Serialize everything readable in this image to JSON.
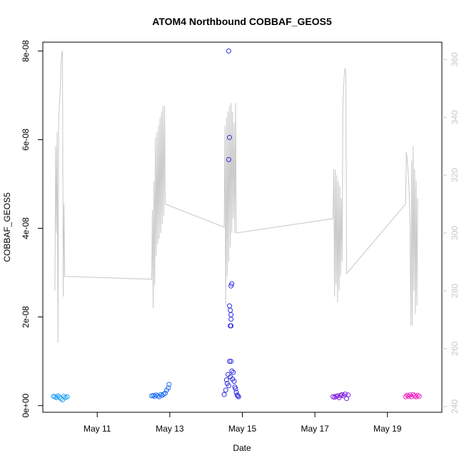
{
  "chart_data": {
    "type": "scatter",
    "title": "ATOM4 Northbound COBBAF_GEOS5",
    "xlabel": "Date",
    "ylabel": "COBBAF_GEOS5",
    "xlim": [
      "2016-05-09T12:00",
      "2016-05-20T12:00"
    ],
    "ylim": [
      -1.5e-09,
      8.2e-08
    ],
    "y2lim": [
      238,
      366
    ],
    "x_ticks": [
      {
        "label": "May 11",
        "value": "2016-05-11"
      },
      {
        "label": "May 13",
        "value": "2016-05-13"
      },
      {
        "label": "May 15",
        "value": "2016-05-15"
      },
      {
        "label": "May 17",
        "value": "2016-05-17"
      },
      {
        "label": "May 19",
        "value": "2016-05-19"
      }
    ],
    "y_ticks": [
      {
        "label": "0e+00",
        "value": 0
      },
      {
        "label": "2e-08",
        "value": 2e-08
      },
      {
        "label": "4e-08",
        "value": 4e-08
      },
      {
        "label": "6e-08",
        "value": 6e-08
      },
      {
        "label": "8e-08",
        "value": 8e-08
      }
    ],
    "y2_ticks": [
      {
        "label": "240",
        "value": 240
      },
      {
        "label": "260",
        "value": 260
      },
      {
        "label": "280",
        "value": 280
      },
      {
        "label": "300",
        "value": 300
      },
      {
        "label": "320",
        "value": 320
      },
      {
        "label": "340",
        "value": 340
      },
      {
        "label": "360",
        "value": 360
      }
    ],
    "series": [
      {
        "type": "line",
        "axis": "right",
        "color": "#c8c8c8",
        "points": [
          [
            "2016-05-09T20:00",
            280
          ],
          [
            "2016-05-09T20:30",
            330
          ],
          [
            "2016-05-09T21:00",
            300
          ],
          [
            "2016-05-09T21:30",
            335
          ],
          [
            "2016-05-09T22:00",
            262
          ],
          [
            "2016-05-09T22:30",
            338
          ],
          [
            "2016-05-09T23:00",
            345
          ],
          [
            "2016-05-09T23:30",
            350
          ],
          [
            "2016-05-10T00:00",
            358
          ],
          [
            "2016-05-10T00:30",
            362
          ],
          [
            "2016-05-10T01:00",
            363
          ],
          [
            "2016-05-10T01:30",
            278
          ],
          [
            "2016-05-10T02:00",
            310
          ],
          [
            "2016-05-10T02:30",
            285
          ],
          [
            "2016-05-12T12:00",
            284
          ],
          [
            "2016-05-12T12:30",
            308
          ],
          [
            "2016-05-12T13:00",
            274
          ],
          [
            "2016-05-12T13:30",
            318
          ],
          [
            "2016-05-12T14:00",
            282
          ],
          [
            "2016-05-12T14:30",
            333
          ],
          [
            "2016-05-12T15:00",
            292
          ],
          [
            "2016-05-12T15:30",
            335
          ],
          [
            "2016-05-12T16:00",
            296
          ],
          [
            "2016-05-12T16:30",
            337
          ],
          [
            "2016-05-12T17:00",
            298
          ],
          [
            "2016-05-12T17:30",
            340
          ],
          [
            "2016-05-12T18:00",
            300
          ],
          [
            "2016-05-12T18:30",
            342
          ],
          [
            "2016-05-12T19:00",
            303
          ],
          [
            "2016-05-12T19:30",
            344
          ],
          [
            "2016-05-12T20:00",
            306
          ],
          [
            "2016-05-12T20:30",
            344
          ],
          [
            "2016-05-12T21:00",
            310
          ],
          [
            "2016-05-14T12:00",
            302
          ],
          [
            "2016-05-14T12:30",
            337
          ],
          [
            "2016-05-14T13:00",
            275
          ],
          [
            "2016-05-14T13:30",
            340
          ],
          [
            "2016-05-14T14:00",
            285
          ],
          [
            "2016-05-14T14:30",
            342
          ],
          [
            "2016-05-14T15:00",
            290
          ],
          [
            "2016-05-14T15:30",
            344
          ],
          [
            "2016-05-14T16:00",
            295
          ],
          [
            "2016-05-14T16:30",
            345
          ],
          [
            "2016-05-14T17:00",
            300
          ],
          [
            "2016-05-14T17:30",
            342
          ],
          [
            "2016-05-14T18:00",
            305
          ],
          [
            "2016-05-14T18:30",
            338
          ],
          [
            "2016-05-14T19:00",
            300
          ],
          [
            "2016-05-14T19:30",
            345
          ],
          [
            "2016-05-14T20:00",
            300
          ],
          [
            "2016-05-17T12:00",
            305
          ],
          [
            "2016-05-17T12:30",
            322
          ],
          [
            "2016-05-17T13:00",
            278
          ],
          [
            "2016-05-17T13:30",
            322
          ],
          [
            "2016-05-17T14:00",
            282
          ],
          [
            "2016-05-17T14:30",
            320
          ],
          [
            "2016-05-17T15:00",
            276
          ],
          [
            "2016-05-17T15:30",
            318
          ],
          [
            "2016-05-17T16:00",
            280
          ],
          [
            "2016-05-17T16:30",
            316
          ],
          [
            "2016-05-17T17:00",
            285
          ],
          [
            "2016-05-17T17:30",
            312
          ],
          [
            "2016-05-17T18:00",
            290
          ],
          [
            "2016-05-17T18:30",
            345
          ],
          [
            "2016-05-17T19:00",
            350
          ],
          [
            "2016-05-17T19:30",
            355
          ],
          [
            "2016-05-17T20:00",
            357
          ],
          [
            "2016-05-17T20:30",
            355
          ],
          [
            "2016-05-17T21:00",
            286
          ],
          [
            "2016-05-19T12:00",
            310
          ],
          [
            "2016-05-19T12:30",
            328
          ],
          [
            "2016-05-19T13:00",
            326
          ],
          [
            "2016-05-19T13:30",
            322
          ],
          [
            "2016-05-19T14:00",
            318
          ],
          [
            "2016-05-19T14:30",
            312
          ],
          [
            "2016-05-19T15:00",
            300
          ],
          [
            "2016-05-19T15:30",
            268
          ],
          [
            "2016-05-19T16:00",
            325
          ],
          [
            "2016-05-19T16:30",
            268
          ],
          [
            "2016-05-19T17:00",
            330
          ],
          [
            "2016-05-19T17:30",
            280
          ],
          [
            "2016-05-19T18:00",
            322
          ],
          [
            "2016-05-19T18:30",
            272
          ],
          [
            "2016-05-19T19:00",
            318
          ],
          [
            "2016-05-19T19:30",
            275
          ],
          [
            "2016-05-19T20:00",
            312
          ]
        ]
      },
      {
        "type": "scatter",
        "axis": "left",
        "color": "#20a0f0",
        "points": [
          [
            "2016-05-09T19:00",
            2.1e-09
          ],
          [
            "2016-05-09T20:00",
            2e-09
          ],
          [
            "2016-05-09T21:00",
            1.8e-09
          ],
          [
            "2016-05-09T22:00",
            2.2e-09
          ],
          [
            "2016-05-09T23:00",
            1.9e-09
          ],
          [
            "2016-05-10T00:00",
            1.6e-09
          ],
          [
            "2016-05-10T01:00",
            1.3e-09
          ],
          [
            "2016-05-10T02:00",
            2.1e-09
          ],
          [
            "2016-05-10T03:00",
            1.8e-09
          ],
          [
            "2016-05-10T04:00",
            2e-09
          ]
        ]
      },
      {
        "type": "scatter",
        "axis": "left",
        "color": "#2070f0",
        "points": [
          [
            "2016-05-12T12:00",
            2.2e-09
          ],
          [
            "2016-05-12T13:00",
            2.3e-09
          ],
          [
            "2016-05-12T14:00",
            2.1e-09
          ],
          [
            "2016-05-12T15:00",
            2.4e-09
          ],
          [
            "2016-05-12T16:00",
            2.2e-09
          ],
          [
            "2016-05-12T17:00",
            2e-09
          ],
          [
            "2016-05-12T18:00",
            2.5e-09
          ],
          [
            "2016-05-12T19:00",
            2.3e-09
          ],
          [
            "2016-05-12T20:00",
            2.6e-09
          ],
          [
            "2016-05-12T21:00",
            2.8e-09
          ],
          [
            "2016-05-12T22:00",
            3.5e-09
          ],
          [
            "2016-05-12T23:00",
            4e-09
          ],
          [
            "2016-05-12T23:30",
            4.8e-09
          ]
        ]
      },
      {
        "type": "scatter",
        "axis": "left",
        "color": "#3030e0",
        "points": [
          [
            "2016-05-14T12:00",
            2.5e-09
          ],
          [
            "2016-05-14T13:00",
            3.5e-09
          ],
          [
            "2016-05-14T14:00",
            5e-09
          ],
          [
            "2016-05-14T15:00",
            4.5e-09
          ],
          [
            "2016-05-14T15:00",
            8e-08
          ],
          [
            "2016-05-14T15:30",
            6.05e-08
          ],
          [
            "2016-05-14T15:00",
            5.55e-08
          ],
          [
            "2016-05-14T17:00",
            2.75e-08
          ],
          [
            "2016-05-14T16:30",
            2.7e-08
          ],
          [
            "2016-05-14T15:30",
            2.25e-08
          ],
          [
            "2016-05-14T16:00",
            2.15e-08
          ],
          [
            "2016-05-14T16:30",
            2.05e-08
          ],
          [
            "2016-05-14T16:30",
            1.95e-08
          ],
          [
            "2016-05-14T16:30",
            1.8e-08
          ],
          [
            "2016-05-14T16:00",
            1.8e-08
          ],
          [
            "2016-05-14T15:30",
            1e-08
          ],
          [
            "2016-05-14T16:30",
            1e-08
          ],
          [
            "2016-05-14T17:00",
            7.8e-09
          ],
          [
            "2016-05-14T18:00",
            7.5e-09
          ],
          [
            "2016-05-14T14:30",
            7e-09
          ],
          [
            "2016-05-14T16:00",
            6.5e-09
          ],
          [
            "2016-05-14T17:30",
            6e-09
          ],
          [
            "2016-05-14T13:30",
            5.8e-09
          ],
          [
            "2016-05-14T18:30",
            5.5e-09
          ],
          [
            "2016-05-14T19:00",
            4.2e-09
          ],
          [
            "2016-05-14T19:30",
            3.8e-09
          ],
          [
            "2016-05-14T20:00",
            3e-09
          ],
          [
            "2016-05-14T20:30",
            2.4e-09
          ],
          [
            "2016-05-14T21:00",
            2.2e-09
          ],
          [
            "2016-05-14T21:30",
            2e-09
          ]
        ]
      },
      {
        "type": "scatter",
        "axis": "left",
        "color": "#8020e0",
        "points": [
          [
            "2016-05-17T12:00",
            2e-09
          ],
          [
            "2016-05-17T13:00",
            1.9e-09
          ],
          [
            "2016-05-17T14:00",
            2.1e-09
          ],
          [
            "2016-05-17T15:00",
            2.2e-09
          ],
          [
            "2016-05-17T16:00",
            1.8e-09
          ],
          [
            "2016-05-17T17:00",
            2.3e-09
          ],
          [
            "2016-05-17T18:00",
            2.5e-09
          ],
          [
            "2016-05-17T19:00",
            2.2e-09
          ],
          [
            "2016-05-17T20:00",
            2.6e-09
          ],
          [
            "2016-05-17T21:00",
            1.6e-09
          ],
          [
            "2016-05-17T22:00",
            2.4e-09
          ]
        ]
      },
      {
        "type": "scatter",
        "axis": "left",
        "color": "#f020c0",
        "points": [
          [
            "2016-05-19T12:00",
            2e-09
          ],
          [
            "2016-05-19T13:00",
            2.3e-09
          ],
          [
            "2016-05-19T14:00",
            2.1e-09
          ],
          [
            "2016-05-19T15:00",
            2.4e-09
          ],
          [
            "2016-05-19T16:00",
            2e-09
          ],
          [
            "2016-05-19T17:00",
            2.5e-09
          ],
          [
            "2016-05-19T18:00",
            2.2e-09
          ],
          [
            "2016-05-19T19:00",
            2e-09
          ],
          [
            "2016-05-19T20:00",
            2.3e-09
          ],
          [
            "2016-05-19T21:00",
            2.1e-09
          ]
        ]
      }
    ]
  }
}
